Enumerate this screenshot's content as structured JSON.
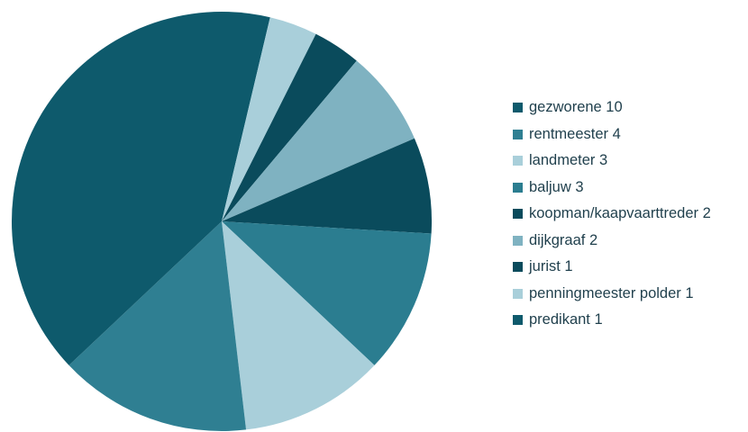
{
  "chart_data": {
    "type": "pie",
    "title": "",
    "start_angle_deg": 0,
    "direction": "clockwise",
    "slices": [
      {
        "label": "gezworene 10",
        "value": 10,
        "color": "#0e5a6c"
      },
      {
        "label": "rentmeester 4",
        "value": 4,
        "color": "#2f7f92"
      },
      {
        "label": "landmeter 3",
        "value": 3,
        "color": "#a9cfda"
      },
      {
        "label": "baljuw 3",
        "value": 3,
        "color": "#2b7d90"
      },
      {
        "label": "koopman/kaapvaarttreder 2",
        "value": 2,
        "color": "#0a4b5c"
      },
      {
        "label": "dijkgraaf 2",
        "value": 2,
        "color": "#7fb2c1"
      },
      {
        "label": "jurist 1",
        "value": 1,
        "color": "#0a4b5c"
      },
      {
        "label": "penningmeester polder 1",
        "value": 1,
        "color": "#a9cfda"
      },
      {
        "label": "predikant 1",
        "value": 1,
        "color": "#0e5a6c"
      }
    ],
    "legend_position": "right"
  }
}
